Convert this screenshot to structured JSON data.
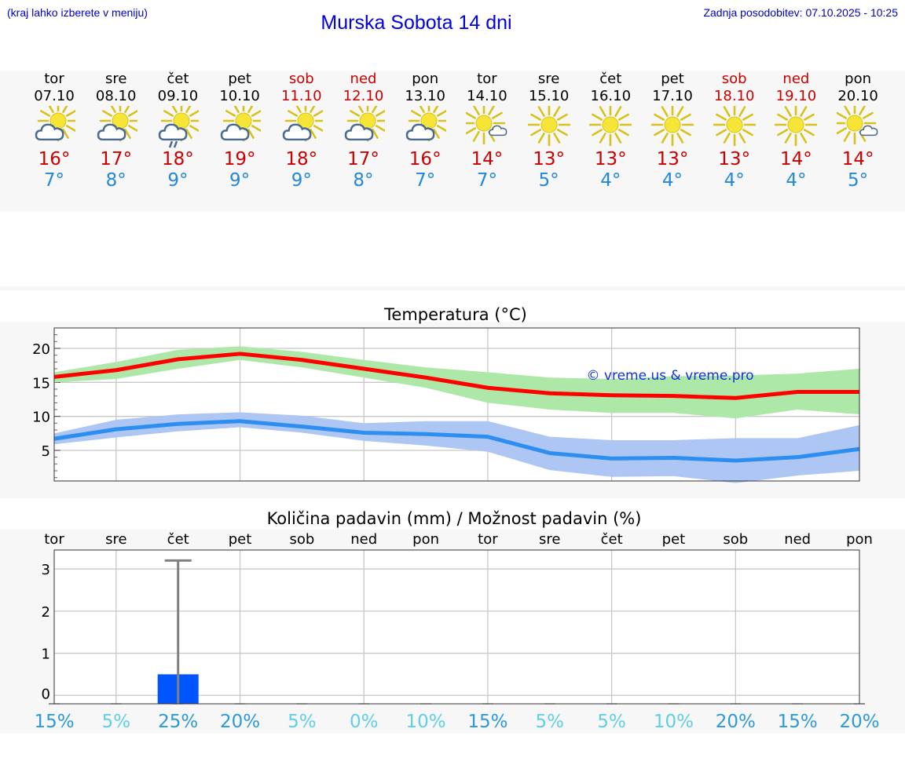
{
  "header": {
    "hint": "(kraj lahko izberete v meniju)",
    "title": "Murska Sobota 14 dni",
    "updated": "Zadnja posodobitev: 07.10.2025 - 10:25"
  },
  "days": [
    {
      "name": "tor",
      "date": "07.10",
      "weekend": false,
      "icon": "sun-cloud-icon",
      "tmax": "16°",
      "tmin": "7°",
      "precip_chance": "15%"
    },
    {
      "name": "sre",
      "date": "08.10",
      "weekend": false,
      "icon": "sun-cloud-icon",
      "tmax": "17°",
      "tmin": "8°",
      "precip_chance": "5%"
    },
    {
      "name": "čet",
      "date": "09.10",
      "weekend": false,
      "icon": "sun-cloud-rain-icon",
      "tmax": "18°",
      "tmin": "9°",
      "precip_chance": "25%"
    },
    {
      "name": "pet",
      "date": "10.10",
      "weekend": false,
      "icon": "sun-cloud-icon",
      "tmax": "19°",
      "tmin": "9°",
      "precip_chance": "20%"
    },
    {
      "name": "sob",
      "date": "11.10",
      "weekend": true,
      "icon": "sun-cloud-icon",
      "tmax": "18°",
      "tmin": "9°",
      "precip_chance": "5%"
    },
    {
      "name": "ned",
      "date": "12.10",
      "weekend": true,
      "icon": "sun-cloud-icon",
      "tmax": "17°",
      "tmin": "8°",
      "precip_chance": "0%"
    },
    {
      "name": "pon",
      "date": "13.10",
      "weekend": false,
      "icon": "sun-cloud-icon",
      "tmax": "16°",
      "tmin": "7°",
      "precip_chance": "10%"
    },
    {
      "name": "tor",
      "date": "14.10",
      "weekend": false,
      "icon": "sun-small-cloud-icon",
      "tmax": "14°",
      "tmin": "7°",
      "precip_chance": "15%"
    },
    {
      "name": "sre",
      "date": "15.10",
      "weekend": false,
      "icon": "sun-icon",
      "tmax": "13°",
      "tmin": "5°",
      "precip_chance": "5%"
    },
    {
      "name": "čet",
      "date": "16.10",
      "weekend": false,
      "icon": "sun-icon",
      "tmax": "13°",
      "tmin": "4°",
      "precip_chance": "5%"
    },
    {
      "name": "pet",
      "date": "17.10",
      "weekend": false,
      "icon": "sun-icon",
      "tmax": "13°",
      "tmin": "4°",
      "precip_chance": "10%"
    },
    {
      "name": "sob",
      "date": "18.10",
      "weekend": true,
      "icon": "sun-icon",
      "tmax": "13°",
      "tmin": "4°",
      "precip_chance": "20%"
    },
    {
      "name": "ned",
      "date": "19.10",
      "weekend": true,
      "icon": "sun-icon",
      "tmax": "14°",
      "tmin": "4°",
      "precip_chance": "15%"
    },
    {
      "name": "pon",
      "date": "20.10",
      "weekend": false,
      "icon": "sun-small-cloud-icon",
      "tmax": "14°",
      "tmin": "5°",
      "precip_chance": "20%"
    }
  ],
  "colors": {
    "weekend": "#cc0000",
    "max_line": "#ff0000",
    "max_band": "#aee8a8",
    "min_line": "#2c8ef0",
    "min_band": "#adc6f3",
    "bar": "#0055ff",
    "chance_dark": "#2c9ad8",
    "chance_light": "#5fcfe8"
  },
  "chart_data": [
    {
      "type": "line",
      "title": "Temperatura (°C)",
      "watermark": "© vreme.us & vreme.pro",
      "x": [
        0,
        1,
        2,
        3,
        4,
        5,
        6,
        7,
        8,
        9,
        10,
        11,
        12,
        13
      ],
      "ylim": [
        0.5,
        23
      ],
      "yticks": [
        5,
        10,
        15,
        20
      ],
      "series": [
        {
          "name": "max",
          "values": [
            15.8,
            16.8,
            18.4,
            19.2,
            18.3,
            17.0,
            15.7,
            14.2,
            13.4,
            13.1,
            13.0,
            12.7,
            13.6,
            13.6
          ],
          "band_low": [
            15.0,
            15.5,
            17.0,
            18.3,
            17.2,
            15.7,
            14.2,
            12.0,
            11.0,
            10.5,
            10.5,
            9.7,
            11.0,
            10.3
          ],
          "band_high": [
            16.5,
            18.0,
            19.8,
            20.3,
            19.5,
            18.3,
            17.2,
            16.5,
            15.7,
            15.5,
            15.9,
            16.0,
            16.3,
            17.0
          ]
        },
        {
          "name": "min",
          "values": [
            6.7,
            8.1,
            8.9,
            9.3,
            8.5,
            7.6,
            7.4,
            7.0,
            4.6,
            3.8,
            3.9,
            3.5,
            4.0,
            5.2
          ],
          "band_low": [
            5.9,
            6.9,
            7.8,
            8.4,
            7.6,
            6.4,
            5.7,
            4.8,
            2.1,
            1.1,
            1.2,
            0.2,
            1.3,
            2.0
          ],
          "band_high": [
            7.5,
            9.5,
            10.3,
            10.6,
            10.1,
            9.0,
            9.3,
            9.3,
            7.0,
            6.5,
            6.5,
            6.8,
            6.8,
            8.7
          ]
        }
      ]
    },
    {
      "type": "bar",
      "title": "Količina padavin (mm) / Možnost padavin (%)",
      "categories": [
        "tor",
        "sre",
        "čet",
        "pet",
        "sob",
        "ned",
        "pon",
        "tor",
        "sre",
        "čet",
        "pet",
        "sob",
        "ned",
        "pon"
      ],
      "values": [
        0,
        0,
        0.5,
        0,
        0,
        0,
        0,
        0,
        0,
        0,
        0,
        0,
        0,
        0
      ],
      "error_high": [
        0,
        0,
        3.2,
        0,
        0,
        0,
        0,
        0,
        0,
        0,
        0,
        0,
        0,
        0
      ],
      "ylim": [
        -0.2,
        3.45
      ],
      "yticks": [
        0,
        1,
        2,
        3
      ],
      "ytick_labels": [
        "0",
        "1",
        "2",
        "3"
      ]
    }
  ]
}
